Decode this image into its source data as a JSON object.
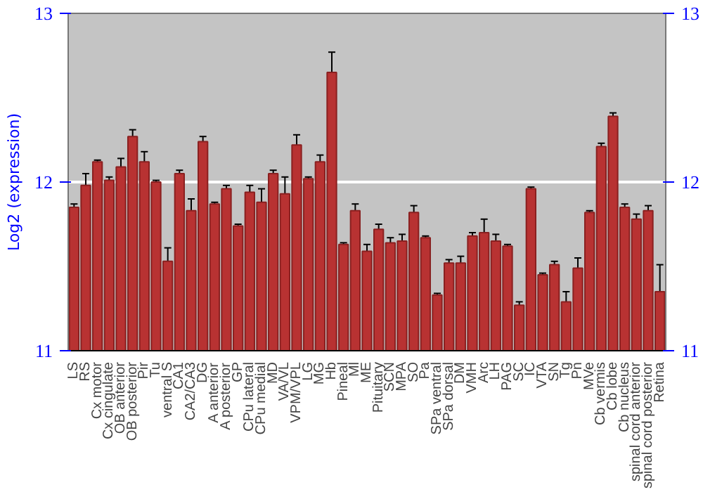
{
  "chart_data": {
    "type": "bar",
    "ylabel": "Log2 (expression)",
    "categories": [
      "LS",
      "RS",
      "Cx motor",
      "Cx cingulate",
      "OB anterior",
      "OB posterior",
      "Pir",
      "Tu",
      "ventral S",
      "CA1",
      "CA2/CA3",
      "DG",
      "A anterior",
      "A posterior",
      "GP",
      "CPu lateral",
      "CPu medial",
      "MD",
      "VA/VL",
      "VPM/VPL",
      "LG",
      "MG",
      "Hb",
      "Pineal",
      "Ml",
      "ME",
      "Pituitary",
      "SCN",
      "MPA",
      "SO",
      "Pa",
      "SPa ventral",
      "SPa dorsal",
      "DM",
      "VMH",
      "Arc",
      "LH",
      "PAG",
      "SC",
      "IC",
      "VTA",
      "SN",
      "Tg",
      "Pn",
      "MVe",
      "Cb vermis",
      "Cb lobe",
      "Cb nucleus",
      "spinal cord anterior",
      "spinal cord posterior",
      "Retina"
    ],
    "values": [
      11.85,
      11.98,
      12.12,
      12.01,
      12.09,
      12.27,
      12.12,
      12.0,
      11.53,
      12.05,
      11.83,
      12.24,
      11.87,
      11.96,
      11.74,
      11.94,
      11.88,
      12.05,
      11.93,
      12.22,
      12.02,
      12.12,
      12.65,
      11.63,
      11.83,
      11.59,
      11.72,
      11.64,
      11.65,
      11.82,
      11.67,
      11.33,
      11.52,
      11.52,
      11.68,
      11.7,
      11.65,
      11.62,
      11.27,
      11.96,
      11.45,
      11.51,
      11.29,
      11.49,
      11.82,
      12.21,
      12.39,
      11.85,
      11.78,
      11.83,
      11.35
    ],
    "errors": [
      0.02,
      0.07,
      0.01,
      0.02,
      0.05,
      0.04,
      0.06,
      0.01,
      0.08,
      0.02,
      0.07,
      0.03,
      0.01,
      0.02,
      0.01,
      0.04,
      0.08,
      0.02,
      0.1,
      0.06,
      0.01,
      0.04,
      0.12,
      0.01,
      0.04,
      0.04,
      0.03,
      0.03,
      0.04,
      0.04,
      0.01,
      0.01,
      0.02,
      0.04,
      0.02,
      0.08,
      0.04,
      0.01,
      0.02,
      0.01,
      0.01,
      0.02,
      0.06,
      0.06,
      0.01,
      0.02,
      0.02,
      0.02,
      0.03,
      0.03,
      0.16
    ],
    "color": "#b83232",
    "ylim": [
      11,
      13
    ],
    "yticks": [
      11,
      12,
      13
    ],
    "y2lim": [
      11,
      13
    ],
    "y2ticks": [
      11,
      12,
      13
    ],
    "grid": "y"
  }
}
